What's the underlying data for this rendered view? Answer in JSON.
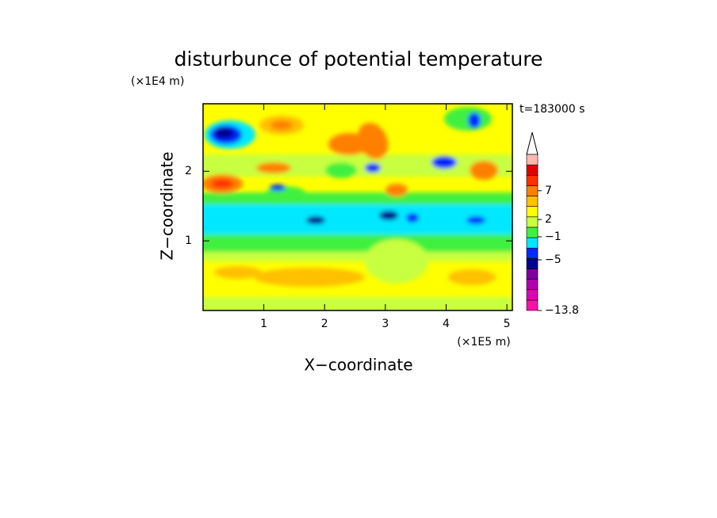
{
  "chart_data": {
    "type": "contour",
    "title": "disturbunce of potential temperature",
    "x_label": "X−coordinate",
    "y_label": "Z−coordinate",
    "x_unit": "(×1E5 m)",
    "y_unit": "(×1E4 m)",
    "time_label": "t=183000 s",
    "xlim": [
      0,
      5.09
    ],
    "xticks": [
      1,
      2,
      3,
      4,
      5
    ],
    "ylim": [
      0,
      2.97
    ],
    "yticks": [
      1,
      2
    ],
    "colorbar": {
      "clim": [
        -13.8,
        13.3
      ],
      "ticks": [
        7,
        2,
        {
          "value": -1,
          "label": "−1"
        },
        {
          "value": -5,
          "label": "−5"
        },
        {
          "value": -13.8,
          "label": "−13.8"
        }
      ],
      "colors": [
        "#ff10a8",
        "#e000b0",
        "#b000b0",
        "#8000a0",
        "#000090",
        "#0028ff",
        "#00e8ff",
        "#40f040",
        "#c8ff40",
        "#ffff00",
        "#ffc000",
        "#ff8000",
        "#ff3000",
        "#e00000",
        "#ffb8b0"
      ]
    }
  }
}
